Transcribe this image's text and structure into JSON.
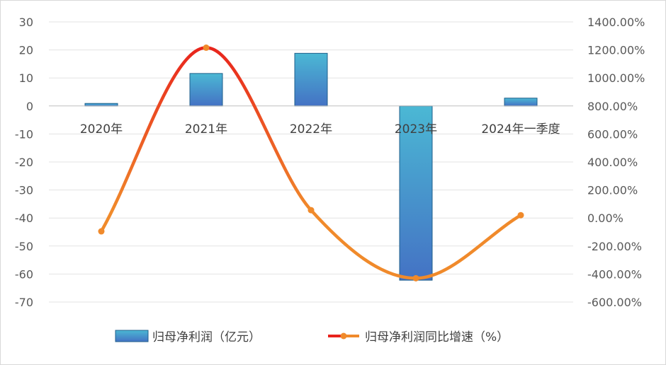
{
  "chart_data": {
    "type": "bar",
    "categories": [
      "2020年",
      "2021年",
      "2022年",
      "2023年",
      "2024年一季度"
    ],
    "series": [
      {
        "name": "归母净利润（亿元）",
        "type": "bar",
        "axis": "left",
        "values": [
          0.9,
          11.6,
          18.8,
          -62.2,
          2.8
        ],
        "color_top": "#4bb8d4",
        "color_bottom": "#4472c4",
        "border": "#1f5f8b"
      },
      {
        "name": "归母净利润同比增速（%）",
        "type": "line",
        "axis": "right",
        "values": [
          -95,
          1216,
          56,
          -430,
          20
        ],
        "color_start": "#e8221c",
        "color_end": "#f08a2b",
        "marker_color": "#f08a2b"
      }
    ],
    "y_left": {
      "min": -70,
      "max": 30,
      "step": 10,
      "ticks": [
        "30",
        "20",
        "10",
        "0",
        "-10",
        "-20",
        "-30",
        "-40",
        "-50",
        "-60",
        "-70"
      ]
    },
    "y_right": {
      "min": -600,
      "max": 1400,
      "step": 200,
      "ticks": [
        "1400.00%",
        "1200.00%",
        "1000.00%",
        "800.00%",
        "600.00%",
        "400.00%",
        "200.00%",
        "0.00%",
        "-200.00%",
        "-400.00%",
        "-600.00%"
      ]
    },
    "grid": true,
    "legend_position": "bottom-center",
    "legend": {
      "bar_label": "归母净利润（亿元）",
      "line_label": "归母净利润同比增速（%）"
    }
  }
}
